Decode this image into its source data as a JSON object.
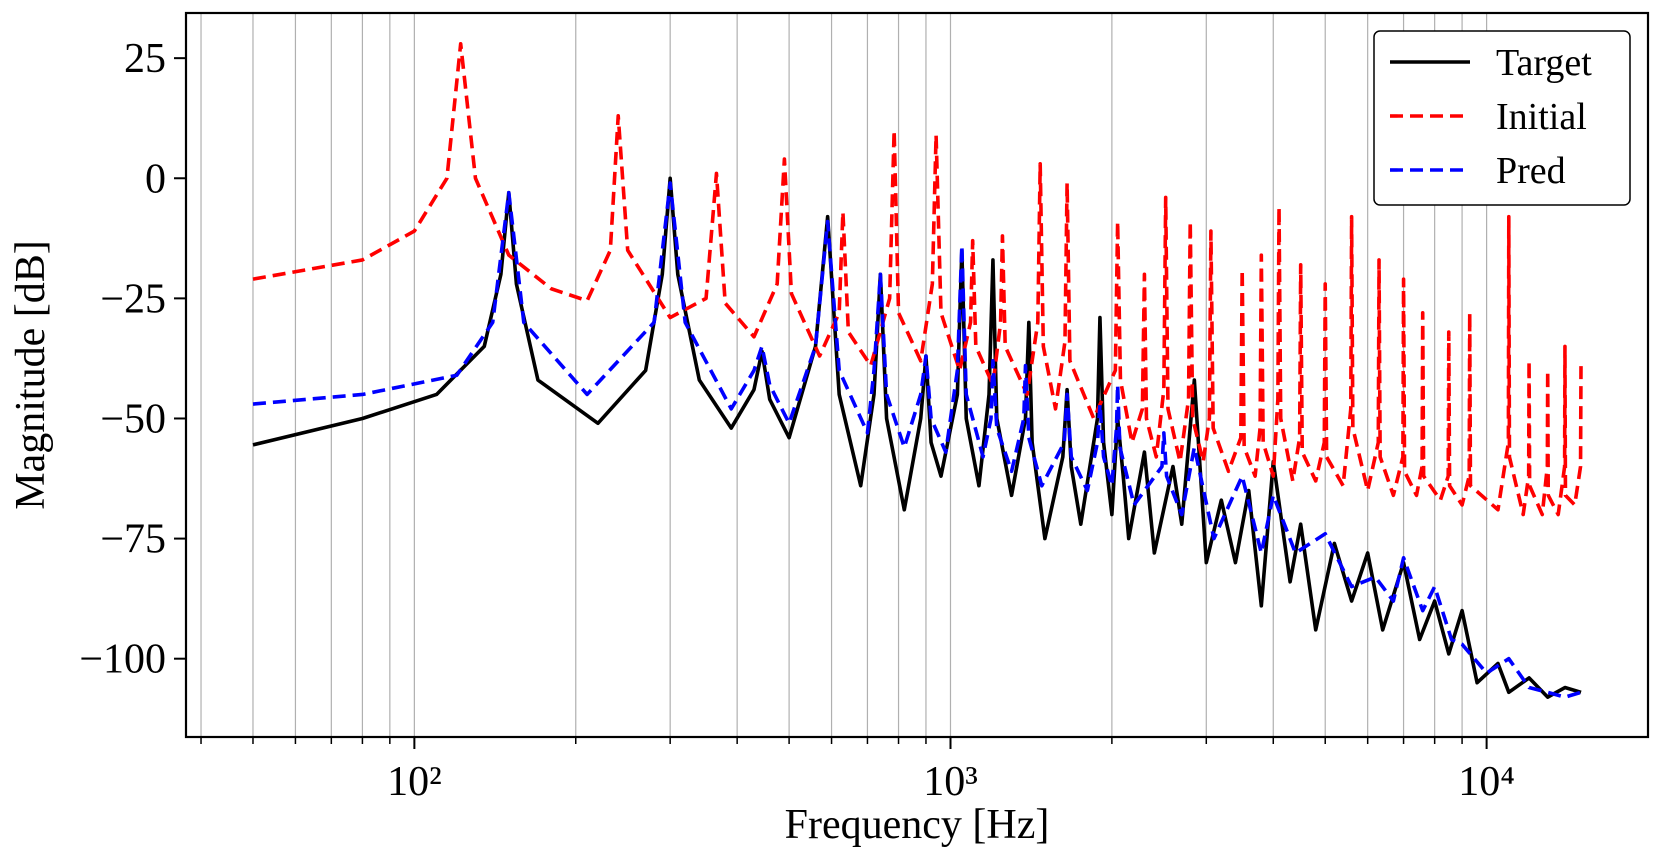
{
  "chart_data": {
    "type": "line",
    "xlabel": "Frequency [Hz]",
    "ylabel": "Magnitude [dB]",
    "xscale": "log",
    "xlim": [
      37.5,
      20000
    ],
    "ylim": [
      -116.3,
      34.4
    ],
    "xticks": [
      {
        "value": 100,
        "label": "10²"
      },
      {
        "value": 1000,
        "label": "10³"
      },
      {
        "value": 10000,
        "label": "10⁴"
      }
    ],
    "xminor_ticks": [
      40,
      50,
      60,
      70,
      80,
      90,
      200,
      300,
      400,
      500,
      600,
      700,
      800,
      900,
      2000,
      3000,
      4000,
      5000,
      6000,
      7000,
      8000,
      9000
    ],
    "yticks": [
      25,
      0,
      {
        "value": -25,
        "label": "−25"
      },
      {
        "value": -50,
        "label": "−50"
      },
      {
        "value": -75,
        "label": "−75"
      },
      {
        "value": -100,
        "label": "−100"
      }
    ],
    "grid": "x",
    "legend": "upper right",
    "series": [
      {
        "name": "Target",
        "color": "#000000",
        "dashed": false,
        "x": [
          50,
          80,
          110,
          135,
          145,
          150,
          155,
          170,
          220,
          270,
          290,
          300,
          310,
          340,
          390,
          430,
          445,
          460,
          500,
          560,
          590,
          620,
          680,
          720,
          740,
          760,
          820,
          880,
          900,
          920,
          960,
          1030,
          1050,
          1070,
          1130,
          1180,
          1200,
          1220,
          1300,
          1380,
          1400,
          1420,
          1500,
          1620,
          1650,
          1680,
          1750,
          1880,
          1900,
          1930,
          2000,
          2050,
          2100,
          2150,
          2300,
          2400,
          2600,
          2700,
          2850,
          3000,
          3200,
          3400,
          3600,
          3800,
          4000,
          4300,
          4500,
          4800,
          5200,
          5600,
          6000,
          6400,
          7000,
          7500,
          8000,
          8500,
          9000,
          9600,
          10500,
          11000,
          12000,
          13000,
          14000,
          15000
        ],
        "values": [
          -55.5,
          -50,
          -45,
          -35,
          -20,
          -3,
          -22,
          -42,
          -51,
          -40,
          -20,
          0,
          -20,
          -42,
          -52,
          -44,
          -36,
          -46,
          -54,
          -35,
          -8,
          -45,
          -64,
          -45,
          -20,
          -50,
          -69,
          -50,
          -37,
          -55,
          -62,
          -45,
          -15,
          -50,
          -64,
          -45,
          -17,
          -50,
          -66,
          -50,
          -30,
          -55,
          -75,
          -58,
          -44,
          -60,
          -72,
          -50,
          -29,
          -55,
          -70,
          -50,
          -62,
          -75,
          -57,
          -78,
          -60,
          -72,
          -42,
          -80,
          -67,
          -80,
          -65,
          -89,
          -59,
          -84,
          -72,
          -94,
          -76,
          -88,
          -78,
          -94,
          -80,
          -96,
          -88,
          -99,
          -90,
          -105,
          -101,
          -107,
          -104,
          -108,
          -106,
          -107
        ]
      },
      {
        "name": "Initial",
        "color": "#ff0000",
        "dashed": true,
        "x": [
          50,
          80,
          100,
          115,
          122,
          130,
          150,
          180,
          210,
          232,
          240,
          250,
          300,
          350,
          366,
          380,
          430,
          475,
          490,
          505,
          570,
          620,
          630,
          645,
          710,
          770,
          785,
          800,
          880,
          925,
          940,
          960,
          1040,
          1090,
          1100,
          1115,
          1200,
          1240,
          1250,
          1265,
          1390,
          1455,
          1470,
          1490,
          1570,
          1635,
          1650,
          1670,
          1850,
          2030,
          2050,
          2075,
          2180,
          2280,
          2300,
          2320,
          2420,
          2500,
          2520,
          2545,
          2680,
          2780,
          2800,
          2830,
          2960,
          3040,
          3060,
          3090,
          3300,
          3480,
          3500,
          3530,
          3700,
          3780,
          3800,
          3830,
          4000,
          4080,
          4100,
          4130,
          4350,
          4480,
          4500,
          4530,
          4800,
          4980,
          5000,
          5030,
          5400,
          5580,
          5600,
          5630,
          6000,
          6280,
          6300,
          6330,
          6700,
          6980,
          7000,
          7030,
          7400,
          7580,
          7600,
          7630,
          8200,
          8480,
          8500,
          8530,
          9000,
          9280,
          9300,
          9330,
          10500,
          10980,
          11000,
          11030,
          11700,
          11980,
          12000,
          12030,
          12700,
          12980,
          13000,
          13030,
          13600,
          13980,
          14000,
          14030,
          14600,
          14970,
          15000
        ],
        "values": [
          -21,
          -17,
          -11,
          0,
          28,
          0,
          -16,
          -23,
          -25.5,
          -15,
          13,
          -15,
          -29,
          -25,
          1,
          -26,
          -33,
          -22,
          4,
          -24,
          -37,
          -28,
          -7,
          -32,
          -39,
          -25,
          10,
          -28,
          -38,
          -22,
          9,
          -28,
          -40,
          -30,
          -13,
          -35,
          -43,
          -30,
          -12,
          -35,
          -45,
          -30,
          3,
          -35,
          -48,
          -34,
          -1,
          -38,
          -50,
          -40,
          -9,
          -42,
          -55,
          -48,
          -20,
          -50,
          -58,
          -44,
          -4,
          -48,
          -59,
          -46,
          -9,
          -50,
          -59,
          -50,
          -11,
          -52,
          -61,
          -54,
          -19,
          -56,
          -62,
          -52,
          -16,
          -55,
          -62,
          -46,
          -6,
          -50,
          -63,
          -54,
          -18,
          -57,
          -63,
          -55,
          -22,
          -58,
          -64,
          -48,
          -8,
          -52,
          -65,
          -55,
          -17,
          -58,
          -66,
          -58,
          -21,
          -61,
          -66,
          -60,
          -28,
          -62,
          -67,
          -62,
          -32,
          -64,
          -68,
          -62,
          -28,
          -64,
          -69,
          -55,
          -8,
          -58,
          -70,
          -62,
          -38,
          -64,
          -70,
          -60,
          -40,
          -66,
          -70,
          -60,
          -35,
          -66,
          -68,
          -60,
          -38
        ]
      },
      {
        "name": "Pred",
        "color": "#0000ff",
        "dashed": true,
        "x": [
          50,
          80,
          120,
          140,
          150,
          160,
          210,
          280,
          300,
          320,
          390,
          430,
          445,
          460,
          500,
          560,
          590,
          620,
          700,
          720,
          740,
          760,
          820,
          880,
          900,
          920,
          980,
          1030,
          1050,
          1070,
          1150,
          1190,
          1200,
          1220,
          1300,
          1370,
          1380,
          1400,
          1480,
          1630,
          1650,
          1680,
          1800,
          1880,
          1900,
          1930,
          2000,
          2040,
          2050,
          2070,
          2200,
          2480,
          2500,
          2530,
          2700,
          2850,
          3100,
          3500,
          3800,
          4000,
          4400,
          5000,
          5600,
          6200,
          6700,
          7000,
          7600,
          8000,
          8600,
          9000,
          10000,
          11000,
          12000,
          13000,
          14000,
          15000
        ],
        "values": [
          -47,
          -45,
          -41,
          -30,
          -3,
          -30,
          -45,
          -30,
          -1,
          -30,
          -48,
          -40,
          -35,
          -43,
          -51,
          -35,
          -9,
          -40,
          -53,
          -40,
          -20,
          -45,
          -56,
          -45,
          -37,
          -50,
          -57,
          -40,
          -14,
          -45,
          -58,
          -50,
          -38,
          -52,
          -61,
          -50,
          -39,
          -54,
          -64,
          -55,
          -45,
          -58,
          -65,
          -55,
          -47,
          -58,
          -64,
          -52,
          -43,
          -56,
          -68,
          -60,
          -53,
          -62,
          -70,
          -56,
          -75,
          -62,
          -78,
          -66,
          -78,
          -74,
          -85,
          -83,
          -88,
          -79,
          -90,
          -85,
          -96,
          -97,
          -103,
          -100,
          -106,
          -107,
          -108,
          -107
        ]
      }
    ]
  }
}
